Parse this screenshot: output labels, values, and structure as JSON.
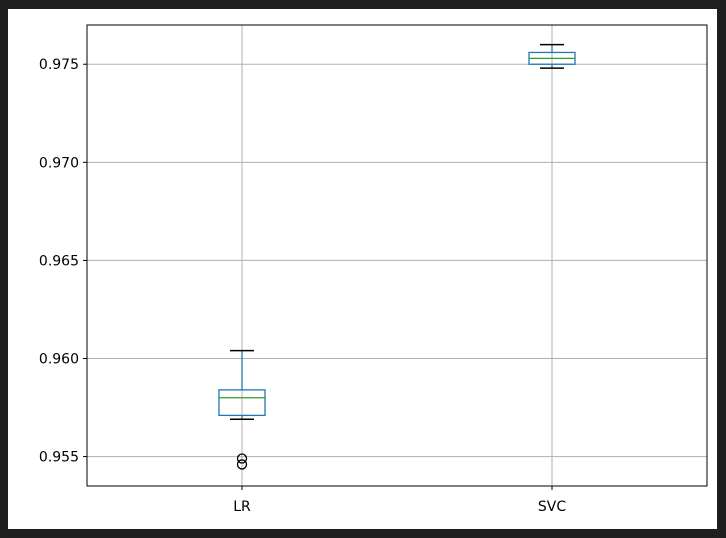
{
  "chart_data": {
    "type": "boxplot",
    "title": "",
    "xlabel": "",
    "ylabel": "",
    "categories": [
      "LR",
      "SVC"
    ],
    "ylim": [
      0.9535,
      0.977
    ],
    "yticks": [
      0.955,
      0.96,
      0.965,
      0.97,
      0.975
    ],
    "ytick_labels": [
      "0.955",
      "0.960",
      "0.965",
      "0.970",
      "0.975"
    ],
    "grid": true,
    "boxes": [
      {
        "name": "LR",
        "whisker_low": 0.9569,
        "q1": 0.9571,
        "median": 0.958,
        "q3": 0.9584,
        "whisker_high": 0.9604,
        "outliers": [
          0.9546,
          0.9549
        ]
      },
      {
        "name": "SVC",
        "whisker_low": 0.9748,
        "q1": 0.975,
        "median": 0.9753,
        "q3": 0.9756,
        "whisker_high": 0.976,
        "outliers": []
      }
    ],
    "colors": {
      "box": "#1f77b4",
      "median": "#2ca02c",
      "whisker_cap": "#000000",
      "grid": "#b0b0b0",
      "frame": "#000000",
      "background_outer": "#1e1e1e"
    }
  }
}
